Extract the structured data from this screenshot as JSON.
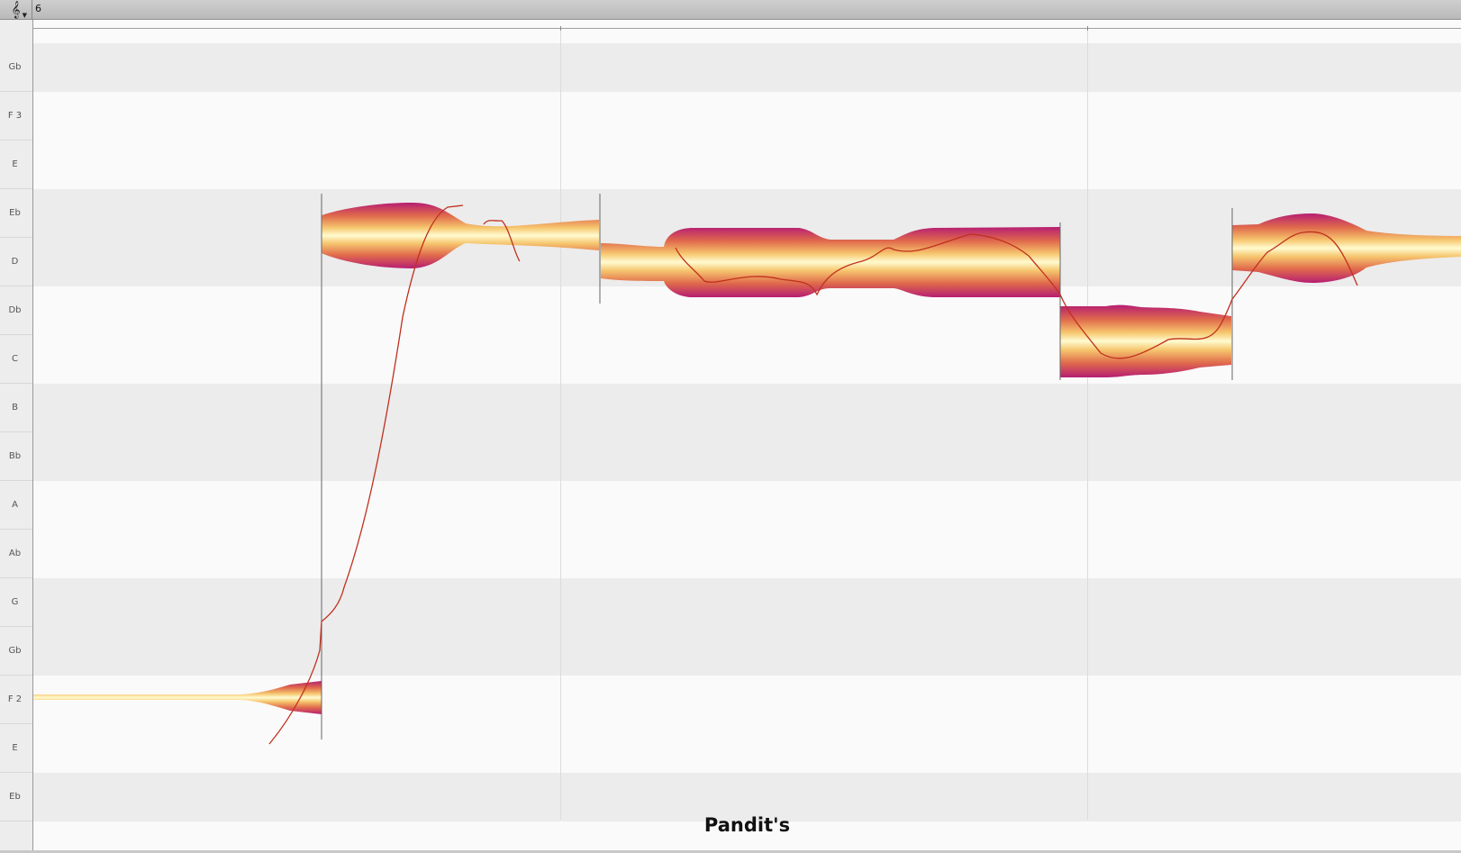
{
  "header": {
    "clef_icon": "treble-clef-icon",
    "bar_number": "6"
  },
  "pitch_ruler": [
    "Gb",
    "F 3",
    "E",
    "Eb",
    "D",
    "Db",
    "C",
    "B",
    "Bb",
    "A",
    "Ab",
    "G",
    "Gb",
    "F 2",
    "E",
    "Eb"
  ],
  "lyric": "Pandit's",
  "colors": {
    "blob_center": "#fffbd0",
    "blob_mid": "#f4b560",
    "blob_edge": "#b61e72",
    "pitch_curve": "#c0301e"
  }
}
